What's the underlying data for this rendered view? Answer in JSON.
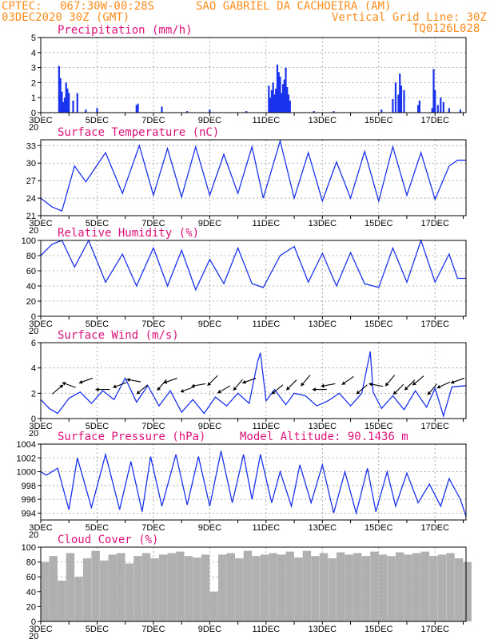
{
  "header": {
    "left_line1": "CPTEC:",
    "coords": "067:30W-00:28S",
    "location": "SAO GABRIEL DA CACHOEIRA (AM)",
    "date": "03DEC2020 30Z (GMT)",
    "grid_note": "Vertical Grid Line: 30Z",
    "model": "TQ0126L028",
    "model_altitude": "Model Altitude: 90.1436 m",
    "year_fragment": "20"
  },
  "colors": {
    "header": "#ff8c1a",
    "panel_title": "#e0107a",
    "series": "#1a33ee",
    "cloud": "#b0b0b0"
  },
  "x_axis": {
    "day_ticks": [
      "3DEC",
      "5DEC",
      "7DEC",
      "9DEC",
      "11DEC",
      "13DEC",
      "15DEC",
      "17DEC"
    ],
    "start_day": 3,
    "end_day": 18.1
  },
  "chart_data": [
    {
      "type": "bar",
      "title": "Precipitation (mm/h)",
      "ylim": [
        0,
        5
      ],
      "yticks": [
        0,
        1,
        2,
        3,
        4,
        5
      ],
      "x_days": [
        3.65,
        3.7,
        3.75,
        3.8,
        3.85,
        3.9,
        3.95,
        4.0,
        4.15,
        4.3,
        4.6,
        5.0,
        6.4,
        6.45,
        7.3,
        8.2,
        9.0,
        10.3,
        11.1,
        11.15,
        11.2,
        11.25,
        11.3,
        11.35,
        11.4,
        11.45,
        11.5,
        11.55,
        11.6,
        11.65,
        11.7,
        11.75,
        11.8,
        11.85,
        12.7,
        13.4,
        15.1,
        15.5,
        15.6,
        15.7,
        15.75,
        15.8,
        15.9,
        16.4,
        16.45,
        16.9,
        16.95,
        17.0,
        17.1,
        17.2,
        17.3,
        17.5,
        17.9
      ],
      "values": [
        3.1,
        2.3,
        1.4,
        0.7,
        1.0,
        2.0,
        1.6,
        1.3,
        0.8,
        1.3,
        0.2,
        0.3,
        0.5,
        0.6,
        0.4,
        0.1,
        0.2,
        0.1,
        1.8,
        1.0,
        1.5,
        2.0,
        1.2,
        1.6,
        3.2,
        2.7,
        2.4,
        1.3,
        1.9,
        2.2,
        3.0,
        1.7,
        1.2,
        0.8,
        0.1,
        0.1,
        0.2,
        0.9,
        2.0,
        1.2,
        2.6,
        1.8,
        1.5,
        0.5,
        0.8,
        0.3,
        2.9,
        1.5,
        0.5,
        1.0,
        0.7,
        0.3,
        0.2
      ]
    },
    {
      "type": "line",
      "title": "Surface Temperature (nC)",
      "ylim": [
        21,
        34
      ],
      "yticks": [
        21,
        24,
        27,
        30,
        33
      ],
      "x_days": [
        3.0,
        3.4,
        3.75,
        4.2,
        4.6,
        5.3,
        5.9,
        6.5,
        7.0,
        7.5,
        8.0,
        8.5,
        9.0,
        9.5,
        10.0,
        10.5,
        10.9,
        11.5,
        12.0,
        12.5,
        13.0,
        13.5,
        14.0,
        14.5,
        15.0,
        15.5,
        16.0,
        16.5,
        17.0,
        17.5,
        17.8,
        18.1
      ],
      "values": [
        24.0,
        22.5,
        21.8,
        29.5,
        26.8,
        31.8,
        24.8,
        33.0,
        24.5,
        32.5,
        24.2,
        32.8,
        24.5,
        31.5,
        24.8,
        32.8,
        24.0,
        33.8,
        24.0,
        31.8,
        23.5,
        30.2,
        24.0,
        32.0,
        23.5,
        32.8,
        24.5,
        31.8,
        23.8,
        29.5,
        30.5,
        30.5
      ]
    },
    {
      "type": "line",
      "title": "Relative Humidity (%)",
      "ylim": [
        0,
        100
      ],
      "yticks": [
        0,
        20,
        40,
        60,
        80,
        100
      ],
      "x_days": [
        3.0,
        3.4,
        3.75,
        4.2,
        4.7,
        5.3,
        5.9,
        6.4,
        7.0,
        7.5,
        8.0,
        8.5,
        9.0,
        9.5,
        10.0,
        10.5,
        10.9,
        11.5,
        12.0,
        12.5,
        13.0,
        13.5,
        14.0,
        14.5,
        15.0,
        15.5,
        16.0,
        16.5,
        17.0,
        17.5,
        17.8,
        18.1
      ],
      "values": [
        80,
        95,
        100,
        65,
        100,
        45,
        82,
        40,
        90,
        40,
        87,
        35,
        75,
        43,
        90,
        43,
        38,
        80,
        92,
        45,
        83,
        40,
        84,
        43,
        38,
        90,
        45,
        100,
        45,
        82,
        50,
        50
      ]
    },
    {
      "type": "line",
      "title": "Surface Wind (m/s)",
      "ylim": [
        0,
        6
      ],
      "yticks": [
        0,
        2,
        4,
        6
      ],
      "x_days": [
        3.0,
        3.3,
        3.6,
        4.0,
        4.4,
        4.8,
        5.2,
        5.6,
        6.0,
        6.4,
        6.8,
        7.2,
        7.6,
        8.0,
        8.4,
        8.8,
        9.2,
        9.6,
        10.0,
        10.4,
        10.7,
        10.8,
        11.0,
        11.3,
        11.7,
        12.0,
        12.4,
        12.8,
        13.2,
        13.6,
        14.0,
        14.4,
        14.7,
        14.8,
        15.1,
        15.5,
        15.9,
        16.3,
        16.7,
        17.0,
        17.3,
        17.6,
        18.1
      ],
      "values": [
        1.5,
        0.8,
        0.4,
        1.6,
        2.1,
        1.2,
        2.2,
        1.5,
        3.2,
        1.3,
        2.6,
        1.0,
        2.2,
        0.5,
        1.5,
        0.4,
        1.7,
        1.0,
        2.0,
        1.2,
        4.5,
        5.2,
        1.4,
        2.3,
        1.1,
        2.0,
        1.8,
        1.0,
        1.4,
        2.0,
        1.0,
        2.0,
        5.3,
        2.1,
        0.8,
        1.8,
        0.7,
        2.2,
        0.9,
        2.4,
        0.2,
        2.5,
        2.6
      ]
    },
    {
      "type": "line",
      "title": "Surface Pressure (hPa)",
      "ylim": [
        993,
        1004
      ],
      "yticks": [
        994,
        996,
        998,
        1000,
        1002,
        1004
      ],
      "x_days": [
        3.0,
        3.2,
        3.6,
        4.0,
        4.3,
        4.8,
        5.3,
        5.8,
        6.2,
        6.6,
        6.9,
        7.3,
        7.8,
        8.2,
        8.6,
        9.0,
        9.4,
        9.8,
        10.2,
        10.5,
        10.8,
        11.2,
        11.5,
        11.9,
        12.2,
        12.6,
        13.0,
        13.4,
        13.8,
        14.2,
        14.6,
        14.9,
        15.3,
        15.6,
        16.0,
        16.4,
        16.8,
        17.2,
        17.5,
        17.9,
        18.1
      ],
      "values": [
        1000.0,
        999.5,
        1000.5,
        994.5,
        1002.0,
        994.8,
        1002.5,
        994.5,
        1001.5,
        994.2,
        1002.2,
        995.0,
        1002.5,
        995.2,
        1002.2,
        995.0,
        1003.0,
        995.5,
        1002.5,
        996.0,
        1002.5,
        995.5,
        1000.0,
        995.0,
        1001.0,
        995.5,
        1001.0,
        994.0,
        1000.0,
        994.0,
        1000.5,
        994.2,
        1000.0,
        995.0,
        999.8,
        995.5,
        998.2,
        995.0,
        999.0,
        996.0,
        993.5
      ]
    },
    {
      "type": "bar",
      "title": "Cloud Cover (%)",
      "ylim": [
        0,
        100
      ],
      "yticks": [
        0,
        20,
        40,
        60,
        80,
        100
      ],
      "x_days": [
        3.0,
        3.3,
        3.6,
        3.9,
        4.2,
        4.5,
        4.8,
        5.1,
        5.4,
        5.7,
        6.0,
        6.3,
        6.6,
        6.9,
        7.2,
        7.5,
        7.8,
        8.1,
        8.4,
        8.7,
        9.0,
        9.3,
        9.6,
        9.9,
        10.2,
        10.5,
        10.8,
        11.1,
        11.4,
        11.7,
        12.0,
        12.3,
        12.6,
        12.9,
        13.2,
        13.5,
        13.8,
        14.1,
        14.4,
        14.7,
        15.0,
        15.3,
        15.6,
        15.9,
        16.2,
        16.5,
        16.8,
        17.1,
        17.4,
        17.7,
        18.0
      ],
      "values": [
        80,
        88,
        55,
        92,
        60,
        85,
        95,
        82,
        90,
        92,
        78,
        88,
        92,
        85,
        90,
        92,
        94,
        88,
        86,
        90,
        40,
        90,
        92,
        85,
        95,
        88,
        90,
        92,
        90,
        94,
        86,
        95,
        88,
        92,
        85,
        93,
        90,
        92,
        88,
        94,
        90,
        88,
        93,
        90,
        92,
        94,
        88,
        90,
        92,
        85,
        80
      ]
    }
  ],
  "wind_arrows": {
    "x_days": [
      3.6,
      4.0,
      4.6,
      5.2,
      5.8,
      6.3,
      6.6,
      7.3,
      7.6,
      8.2,
      8.6,
      9.1,
      9.5,
      10.0,
      10.4,
      11.4,
      11.9,
      12.4,
      12.9,
      13.2,
      13.9,
      14.4,
      14.9,
      15.4,
      15.7,
      16.1,
      16.4,
      16.9,
      17.3,
      17.8
    ],
    "angles_deg": [
      40,
      160,
      200,
      180,
      200,
      170,
      220,
      230,
      200,
      200,
      190,
      225,
      210,
      230,
      200,
      220,
      225,
      230,
      180,
      190,
      215,
      220,
      170,
      230,
      225,
      225,
      220,
      230,
      205,
      200
    ]
  }
}
